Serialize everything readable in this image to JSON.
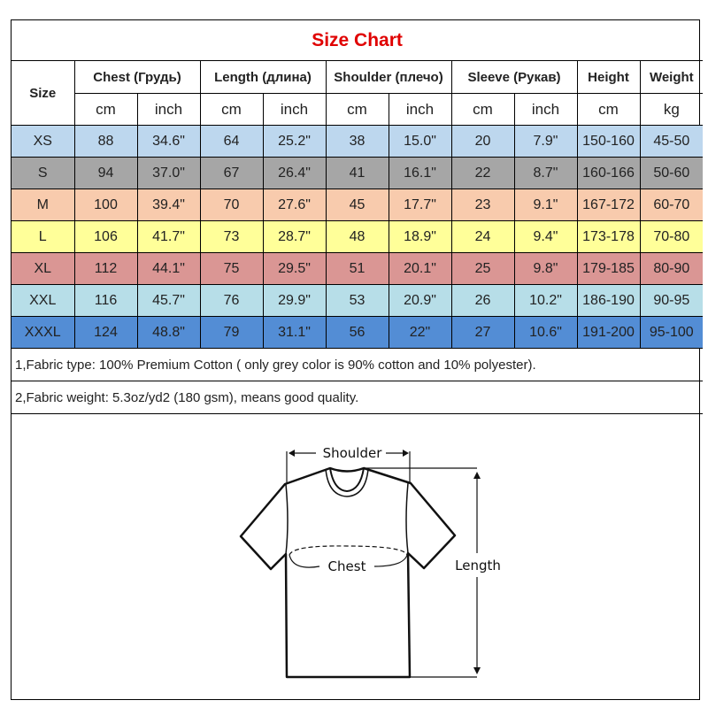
{
  "title": "Size Chart",
  "headers": {
    "size": "Size",
    "groups": [
      "Chest  (Грудь)",
      "Length (длина)",
      "Shoulder (плечо)",
      "Sleeve (Рукав)",
      "Height",
      "Weight"
    ],
    "units": [
      "cm",
      "inch",
      "cm",
      "inch",
      "cm",
      "inch",
      "cm",
      "inch",
      "cm",
      "kg"
    ]
  },
  "rows": [
    {
      "size": "XS",
      "values": [
        "88",
        "34.6\"",
        "64",
        "25.2\"",
        "38",
        "15.0\"",
        "20",
        "7.9\"",
        "150-160",
        "45-50"
      ],
      "color": "#bdd7ee"
    },
    {
      "size": "S",
      "values": [
        "94",
        "37.0\"",
        "67",
        "26.4\"",
        "41",
        "16.1\"",
        "22",
        "8.7\"",
        "160-166",
        "50-60"
      ],
      "color": "#a6a6a6"
    },
    {
      "size": "M",
      "values": [
        "100",
        "39.4\"",
        "70",
        "27.6\"",
        "45",
        "17.7\"",
        "23",
        "9.1\"",
        "167-172",
        "60-70"
      ],
      "color": "#f8cbad"
    },
    {
      "size": "L",
      "values": [
        "106",
        "41.7\"",
        "73",
        "28.7\"",
        "48",
        "18.9\"",
        "24",
        "9.4\"",
        "173-178",
        "70-80"
      ],
      "color": "#ffff99"
    },
    {
      "size": "XL",
      "values": [
        "112",
        "44.1\"",
        "75",
        "29.5\"",
        "51",
        "20.1\"",
        "25",
        "9.8\"",
        "179-185",
        "80-90"
      ],
      "color": "#da9694"
    },
    {
      "size": "XXL",
      "values": [
        "116",
        "45.7\"",
        "76",
        "29.9\"",
        "53",
        "20.9\"",
        "26",
        "10.2\"",
        "186-190",
        "90-95"
      ],
      "color": "#b7dee8"
    },
    {
      "size": "XXXL",
      "values": [
        "124",
        "48.8\"",
        "79",
        "31.1\"",
        "56",
        "22\"",
        "27",
        "10.6\"",
        "191-200",
        "95-100"
      ],
      "color": "#538dd5"
    }
  ],
  "notes": [
    "1,Fabric type: 100% Premium Cotton ( only grey color is 90% cotton and 10% polyester).",
    "2,Fabric weight: 5.3oz/yd2 (180 gsm), means good quality."
  ],
  "diagram": {
    "shoulder": "Shoulder",
    "chest": "Chest",
    "length": "Length"
  }
}
